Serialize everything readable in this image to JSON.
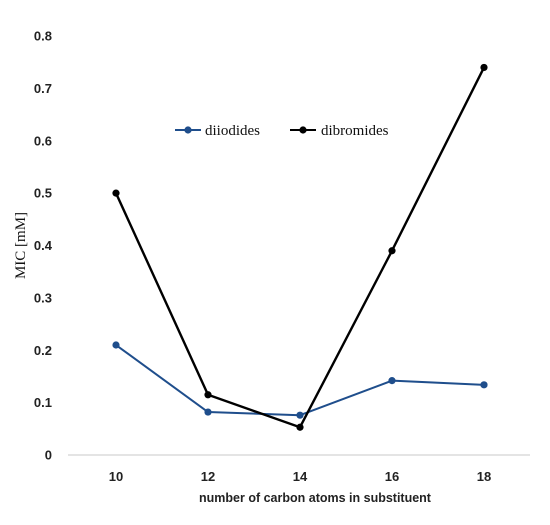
{
  "chart_data": {
    "type": "line",
    "x": [
      10,
      12,
      14,
      16,
      18
    ],
    "xlabel": "number of carbon atoms in substituent",
    "ylabel": "MIC [mM]",
    "ylim": [
      0,
      0.8
    ],
    "yticks": [
      "0",
      "0.1",
      "0.2",
      "0.3",
      "0.4",
      "0.5",
      "0.6",
      "0.7",
      "0.8"
    ],
    "xticks": [
      "10",
      "12",
      "14",
      "16",
      "18"
    ],
    "grid": "none",
    "legend_position": "top-center",
    "series": [
      {
        "name": "diiodides",
        "color": "#1f4e8c",
        "values": [
          0.21,
          0.082,
          0.076,
          0.142,
          0.134
        ]
      },
      {
        "name": "dibromides",
        "color": "#000000",
        "values": [
          0.5,
          0.115,
          0.053,
          0.39,
          0.74
        ]
      }
    ]
  }
}
